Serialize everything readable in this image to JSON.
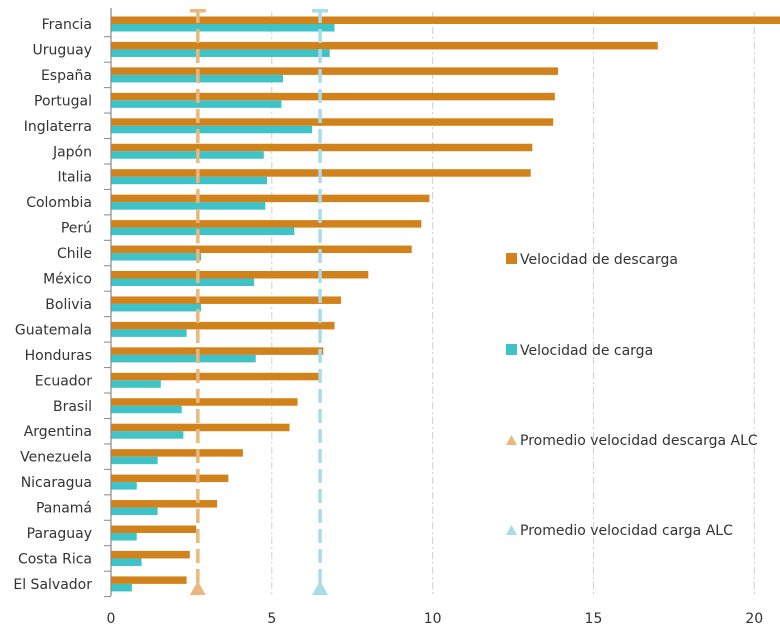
{
  "chart_data": {
    "type": "bar",
    "orientation": "horizontal",
    "categories": [
      "Francia",
      "Uruguay",
      "España",
      "Portugal",
      "Inglaterra",
      "Japón",
      "Italia",
      "Colombia",
      "Perú",
      "Chile",
      "México",
      "Bolivia",
      "Guatemala",
      "Honduras",
      "Ecuador",
      "Brasil",
      "Argentina",
      "Venezuela",
      "Nicaragua",
      "Panamá",
      "Paraguay",
      "Costa Rica",
      "El Salvador"
    ],
    "series": [
      {
        "name": "Velocidad de descarga",
        "color": "#d2821a",
        "values": [
          20.8,
          17.0,
          13.9,
          13.8,
          13.75,
          13.1,
          13.05,
          9.9,
          9.65,
          9.35,
          8.0,
          7.15,
          6.95,
          6.6,
          6.5,
          5.8,
          5.55,
          4.1,
          3.65,
          3.3,
          2.65,
          2.45,
          2.35
        ]
      },
      {
        "name": "Velocidad de carga",
        "color": "#3ec3c8",
        "values": [
          6.95,
          6.8,
          5.35,
          5.3,
          6.25,
          4.75,
          4.85,
          4.8,
          5.7,
          2.8,
          4.45,
          2.8,
          2.35,
          4.5,
          1.55,
          2.2,
          2.25,
          1.45,
          0.8,
          1.45,
          0.8,
          0.95,
          0.65
        ]
      }
    ],
    "averages": [
      {
        "name": "Promedio velocidad descarga ALC",
        "value": 2.7,
        "color": "#e8b87c"
      },
      {
        "name": "Promedio velocidad carga ALC",
        "value": 6.5,
        "color": "#a9dce8"
      }
    ],
    "xlim": [
      0,
      20.8
    ],
    "xticks": [
      0,
      5,
      10,
      15,
      20
    ],
    "grid": true,
    "legend_position": "right"
  }
}
